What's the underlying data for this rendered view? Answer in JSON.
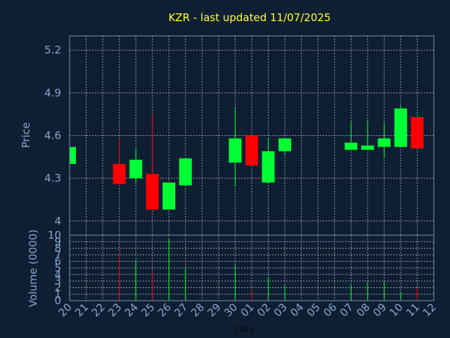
{
  "chart_data": [
    {
      "type": "candlestick",
      "title": "KZR - last updated 11/07/2025",
      "ylabel": "Price",
      "ylim": [
        3.9,
        5.3
      ],
      "yticks": [
        "4",
        "4.3",
        "4.6",
        "4.9",
        "5.2"
      ],
      "xlabel": "Day",
      "categories": [
        "20",
        "21",
        "22",
        "23",
        "24",
        "25",
        "26",
        "27",
        "28",
        "29",
        "30",
        "01",
        "02",
        "03",
        "04",
        "05",
        "06",
        "07",
        "08",
        "09",
        "10",
        "11",
        "12"
      ],
      "candles": [
        {
          "day": "20",
          "open": 4.4,
          "close": 4.52,
          "high": 4.52,
          "low": 4.4
        },
        {
          "day": "23",
          "open": 4.4,
          "close": 4.26,
          "high": 4.58,
          "low": 4.24
        },
        {
          "day": "24",
          "open": 4.3,
          "close": 4.43,
          "high": 4.51,
          "low": 4.27
        },
        {
          "day": "25",
          "open": 4.33,
          "close": 4.08,
          "high": 4.75,
          "low": 4.08
        },
        {
          "day": "26",
          "open": 4.08,
          "close": 4.27,
          "high": 4.27,
          "low": 4.08
        },
        {
          "day": "27",
          "open": 4.25,
          "close": 4.44,
          "high": 4.44,
          "low": 4.25
        },
        {
          "day": "30",
          "open": 4.41,
          "close": 4.58,
          "high": 4.8,
          "low": 4.24
        },
        {
          "day": "01",
          "open": 4.6,
          "close": 4.39,
          "high": 4.6,
          "low": 4.39
        },
        {
          "day": "02",
          "open": 4.27,
          "close": 4.49,
          "high": 4.58,
          "low": 4.27
        },
        {
          "day": "03",
          "open": 4.49,
          "close": 4.58,
          "high": 4.58,
          "low": 4.47
        },
        {
          "day": "07",
          "open": 4.5,
          "close": 4.55,
          "high": 4.7,
          "low": 4.5
        },
        {
          "day": "08",
          "open": 4.5,
          "close": 4.53,
          "high": 4.71,
          "low": 4.5
        },
        {
          "day": "09",
          "open": 4.52,
          "close": 4.58,
          "high": 4.69,
          "low": 4.44
        },
        {
          "day": "10",
          "open": 4.52,
          "close": 4.79,
          "high": 4.81,
          "low": 4.52
        },
        {
          "day": "11",
          "open": 4.73,
          "close": 4.51,
          "high": 4.73,
          "low": 4.51
        }
      ],
      "colors": {
        "up": "#00ff33",
        "down": "#ff0000"
      }
    },
    {
      "type": "bar",
      "ylabel": "Volume (0000)",
      "ylim": [
        0,
        10
      ],
      "yticks": [
        "0",
        "1",
        "2",
        "3",
        "4",
        "5",
        "6",
        "7",
        "8",
        "9",
        "10"
      ],
      "xlabel": "Day",
      "categories": [
        "20",
        "21",
        "22",
        "23",
        "24",
        "25",
        "26",
        "27",
        "28",
        "29",
        "30",
        "01",
        "02",
        "03",
        "04",
        "05",
        "06",
        "07",
        "08",
        "09",
        "10",
        "11",
        "12"
      ],
      "bars": [
        {
          "day": "23",
          "value": 7.5,
          "direction": "down"
        },
        {
          "day": "24",
          "value": 6.0,
          "direction": "up"
        },
        {
          "day": "25",
          "value": 4.5,
          "direction": "down"
        },
        {
          "day": "26",
          "value": 9.4,
          "direction": "up"
        },
        {
          "day": "27",
          "value": 5.0,
          "direction": "up"
        },
        {
          "day": "30",
          "value": 5.4,
          "direction": "up"
        },
        {
          "day": "01",
          "value": 1.8,
          "direction": "down"
        },
        {
          "day": "02",
          "value": 3.6,
          "direction": "up"
        },
        {
          "day": "03",
          "value": 2.4,
          "direction": "up"
        },
        {
          "day": "07",
          "value": 2.4,
          "direction": "up"
        },
        {
          "day": "08",
          "value": 2.8,
          "direction": "up"
        },
        {
          "day": "09",
          "value": 2.8,
          "direction": "up"
        },
        {
          "day": "10",
          "value": 1.3,
          "direction": "up"
        },
        {
          "day": "11",
          "value": 2.0,
          "direction": "down"
        }
      ]
    }
  ]
}
